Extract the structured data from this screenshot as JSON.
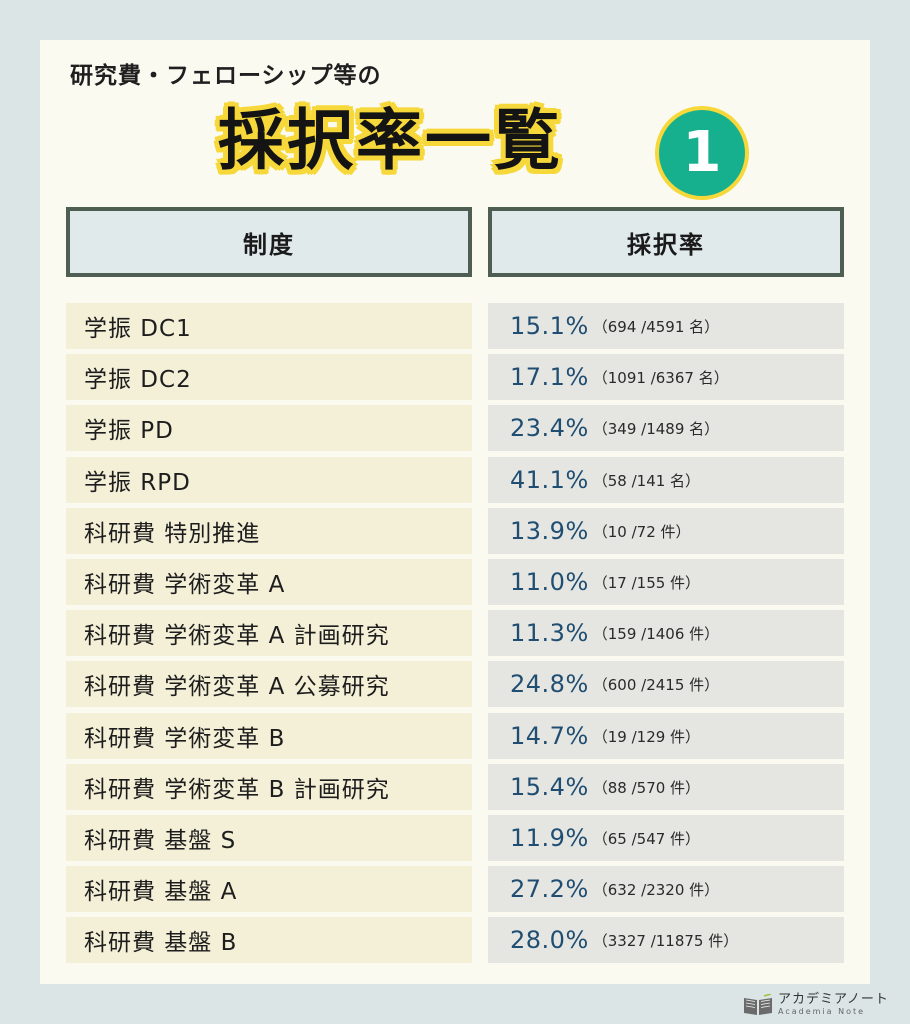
{
  "header": {
    "subtitle": "研究費・フェローシップ等の",
    "title": "採択率一覧",
    "number_badge": "1"
  },
  "table": {
    "columns": [
      "制度",
      "採択率"
    ],
    "rows": [
      {
        "name": "学振 DC1",
        "rate": "15.1%",
        "detail": "（694 /4591 名）"
      },
      {
        "name": "学振 DC2",
        "rate": "17.1%",
        "detail": "（1091 /6367 名）"
      },
      {
        "name": "学振 PD",
        "rate": "23.4%",
        "detail": "（349 /1489 名）"
      },
      {
        "name": "学振 RPD",
        "rate": "41.1%",
        "detail": "（58 /141 名）"
      },
      {
        "name": "科研費 特別推進",
        "rate": "13.9%",
        "detail": "（10 /72 件）"
      },
      {
        "name": "科研費 学術変革 A",
        "rate": "11.0%",
        "detail": "（17 /155 件）"
      },
      {
        "name": "科研費 学術変革 A 計画研究",
        "rate": "11.3%",
        "detail": "（159 /1406 件）"
      },
      {
        "name": "科研費 学術変革 A 公募研究",
        "rate": "24.8%",
        "detail": "（600 /2415 件）"
      },
      {
        "name": "科研費 学術変革 B",
        "rate": "14.7%",
        "detail": "（19 /129 件）"
      },
      {
        "name": "科研費 学術変革 B 計画研究",
        "rate": "15.4%",
        "detail": "（88 /570 件）"
      },
      {
        "name": "科研費 基盤 S",
        "rate": "11.9%",
        "detail": "（65 /547 件）"
      },
      {
        "name": "科研費 基盤 A",
        "rate": "27.2%",
        "detail": "（632 /2320 件）"
      },
      {
        "name": "科研費 基盤 B",
        "rate": "28.0%",
        "detail": "（3327 /11875 件）"
      }
    ]
  },
  "footer": {
    "logo_jp": "アカデミアノート",
    "logo_en": "Academia Note",
    "logo_icon": "book-icon"
  },
  "colors": {
    "background": "#dbe5e6",
    "card": "#fbfaf0",
    "title_highlight": "#f6d83a",
    "badge": "#17b08e",
    "percent_text": "#1f4e72",
    "header_border": "#4f5e52"
  }
}
